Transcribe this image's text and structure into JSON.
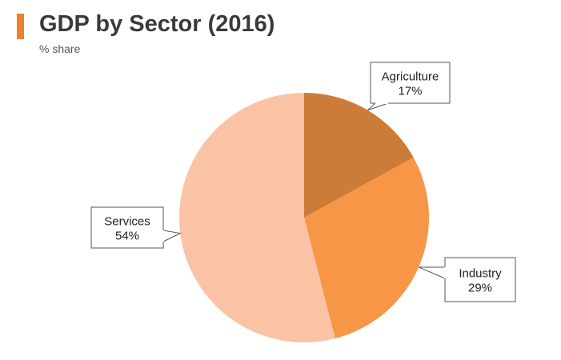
{
  "header": {
    "title": "GDP by Sector (2016)",
    "subtitle": "% share",
    "accent_color": "#f07f2e"
  },
  "chart_data": {
    "type": "pie",
    "title": "GDP by Sector (2016)",
    "subtitle": "% share",
    "unit": "%",
    "start_angle_deg": 0,
    "direction": "clockwise",
    "legend": "none",
    "slices": [
      {
        "name": "Agriculture",
        "value": 17,
        "label": "17%",
        "color": "#cd7b38"
      },
      {
        "name": "Industry",
        "value": 29,
        "label": "29%",
        "color": "#f79646"
      },
      {
        "name": "Services",
        "value": 54,
        "label": "54%",
        "color": "#fac3a6"
      }
    ]
  }
}
